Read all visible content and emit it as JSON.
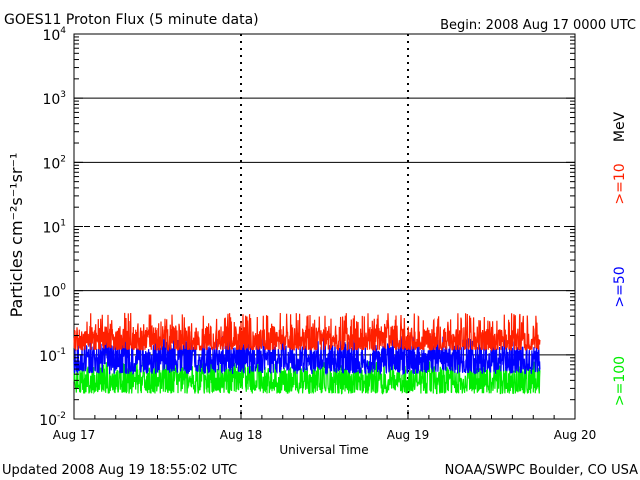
{
  "chart_data": {
    "type": "line",
    "title": "GOES11 Proton Flux (5 minute data)",
    "begin_label": "Begin: 2008 Aug 17 0000 UTC",
    "ylabel": "Particles cm⁻²s⁻¹sr⁻¹",
    "xlabel": "Universal Time",
    "y_scale": "log",
    "ylim": [
      0.01,
      10000
    ],
    "y_ticks": [
      {
        "value": 10000,
        "base": "10",
        "exp": "4"
      },
      {
        "value": 1000,
        "base": "10",
        "exp": "3"
      },
      {
        "value": 100,
        "base": "10",
        "exp": "2"
      },
      {
        "value": 10,
        "base": "10",
        "exp": "1"
      },
      {
        "value": 1,
        "base": "10",
        "exp": "0"
      },
      {
        "value": 0.1,
        "base": "10",
        "exp": "-1"
      },
      {
        "value": 0.01,
        "base": "10",
        "exp": "-2"
      }
    ],
    "x_ticks": [
      "Aug 17",
      "Aug 18",
      "Aug 19",
      "Aug 20"
    ],
    "xlim_days": [
      0,
      3
    ],
    "threshold_lines": [
      {
        "value": 1000,
        "style": "solid"
      },
      {
        "value": 100,
        "style": "solid"
      },
      {
        "value": 10,
        "style": "dashed"
      },
      {
        "value": 1,
        "style": "solid"
      },
      {
        "value": 0.1,
        "style": "solid"
      }
    ],
    "units_label": "MeV",
    "series": [
      {
        "name": ">=10",
        "color": "#ff2000",
        "x_start_day": 0,
        "x_end_day": 2.79,
        "typical": 0.17,
        "range": [
          0.12,
          0.45
        ]
      },
      {
        "name": ">=50",
        "color": "#0000ff",
        "x_start_day": 0,
        "x_end_day": 2.79,
        "typical": 0.085,
        "range": [
          0.05,
          0.2
        ]
      },
      {
        "name": ">=100",
        "color": "#00ee00",
        "x_start_day": 0,
        "x_end_day": 2.79,
        "typical": 0.04,
        "range": [
          0.025,
          0.08
        ]
      }
    ]
  },
  "footer": {
    "updated": "Updated 2008 Aug 19 18:55:02 UTC",
    "credit": "NOAA/SWPC Boulder, CO USA"
  }
}
